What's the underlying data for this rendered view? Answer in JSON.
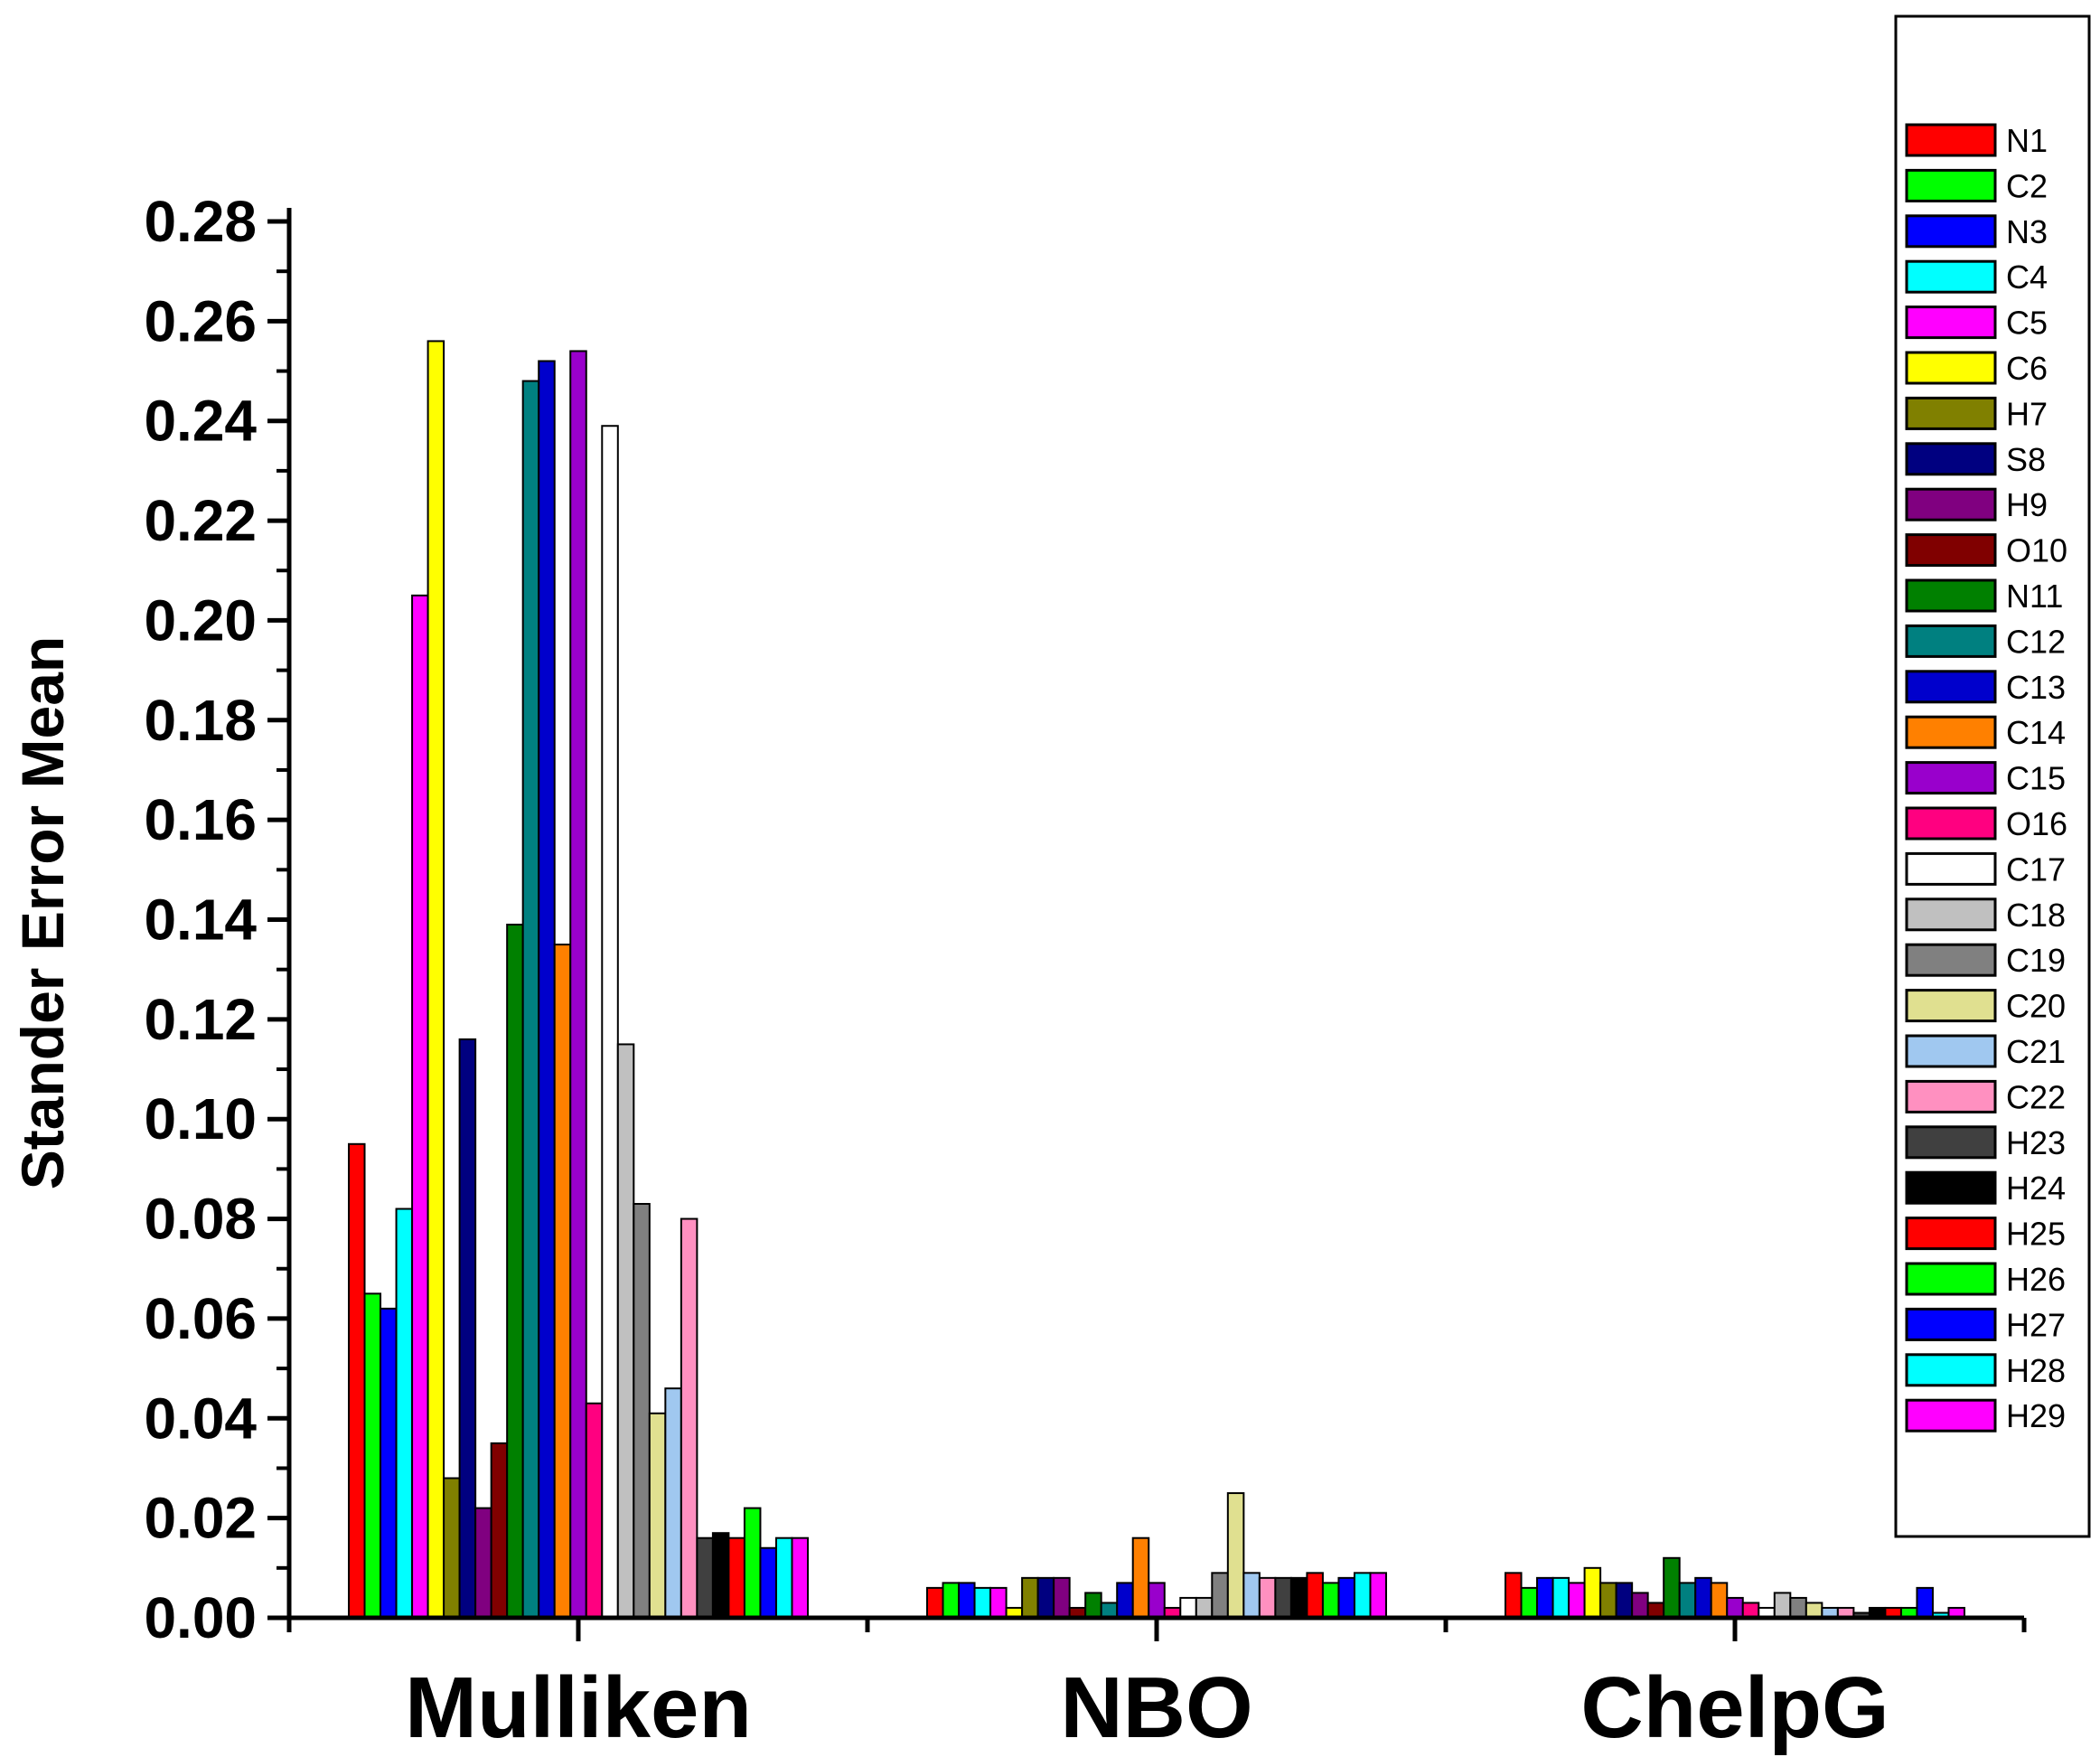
{
  "chart_data": {
    "type": "bar",
    "ylabel": "Stander Error Mean",
    "xlabel": "",
    "ylim": [
      0,
      0.28
    ],
    "y_ticks": [
      "0.00",
      "0.02",
      "0.04",
      "0.06",
      "0.08",
      "0.10",
      "0.12",
      "0.14",
      "0.16",
      "0.18",
      "0.20",
      "0.22",
      "0.24",
      "0.26",
      "0.28"
    ],
    "categories": [
      "Mulliken",
      "NBO",
      "ChelpG"
    ],
    "legend_position": "right",
    "grid": false,
    "series": [
      {
        "name": "N1",
        "color": "#ff0000",
        "values": [
          0.095,
          0.006,
          0.009
        ]
      },
      {
        "name": "C2",
        "color": "#00ff00",
        "values": [
          0.065,
          0.007,
          0.006
        ]
      },
      {
        "name": "N3",
        "color": "#0000ff",
        "values": [
          0.062,
          0.007,
          0.008
        ]
      },
      {
        "name": "C4",
        "color": "#00ffff",
        "values": [
          0.082,
          0.006,
          0.008
        ]
      },
      {
        "name": "C5",
        "color": "#ff00ff",
        "values": [
          0.205,
          0.006,
          0.007
        ]
      },
      {
        "name": "C6",
        "color": "#ffff00",
        "values": [
          0.256,
          0.002,
          0.01
        ]
      },
      {
        "name": "H7",
        "color": "#808000",
        "values": [
          0.028,
          0.008,
          0.007
        ]
      },
      {
        "name": "S8",
        "color": "#000080",
        "values": [
          0.116,
          0.008,
          0.007
        ]
      },
      {
        "name": "H9",
        "color": "#800080",
        "values": [
          0.022,
          0.008,
          0.005
        ]
      },
      {
        "name": "O10",
        "color": "#800000",
        "values": [
          0.035,
          0.002,
          0.003
        ]
      },
      {
        "name": "N11",
        "color": "#008000",
        "values": [
          0.139,
          0.005,
          0.012
        ]
      },
      {
        "name": "C12",
        "color": "#008080",
        "values": [
          0.248,
          0.003,
          0.007
        ]
      },
      {
        "name": "C13",
        "color": "#0000cc",
        "values": [
          0.252,
          0.007,
          0.008
        ]
      },
      {
        "name": "C14",
        "color": "#ff8000",
        "values": [
          0.135,
          0.016,
          0.007
        ]
      },
      {
        "name": "C15",
        "color": "#9900cc",
        "values": [
          0.254,
          0.007,
          0.004
        ]
      },
      {
        "name": "O16",
        "color": "#ff0080",
        "values": [
          0.043,
          0.002,
          0.003
        ]
      },
      {
        "name": "C17",
        "color": "#ffffff",
        "values": [
          0.239,
          0.004,
          0.002
        ]
      },
      {
        "name": "C18",
        "color": "#c0c0c0",
        "values": [
          0.115,
          0.004,
          0.005
        ]
      },
      {
        "name": "C19",
        "color": "#808080",
        "values": [
          0.083,
          0.009,
          0.004
        ]
      },
      {
        "name": "C20",
        "color": "#e0e090",
        "values": [
          0.041,
          0.025,
          0.003
        ]
      },
      {
        "name": "C21",
        "color": "#a0c8f0",
        "values": [
          0.046,
          0.009,
          0.002
        ]
      },
      {
        "name": "C22",
        "color": "#ff90c0",
        "values": [
          0.08,
          0.008,
          0.002
        ]
      },
      {
        "name": "H23",
        "color": "#404040",
        "values": [
          0.016,
          0.008,
          0.001
        ]
      },
      {
        "name": "H24",
        "color": "#000000",
        "values": [
          0.017,
          0.008,
          0.002
        ]
      },
      {
        "name": "H25",
        "color": "#ff0000",
        "values": [
          0.016,
          0.009,
          0.002
        ]
      },
      {
        "name": "H26",
        "color": "#00ff00",
        "values": [
          0.022,
          0.007,
          0.002
        ]
      },
      {
        "name": "H27",
        "color": "#0000ff",
        "values": [
          0.014,
          0.008,
          0.006
        ]
      },
      {
        "name": "H28",
        "color": "#00ffff",
        "values": [
          0.016,
          0.009,
          0.001
        ]
      },
      {
        "name": "H29",
        "color": "#ff00ff",
        "values": [
          0.016,
          0.009,
          0.002
        ]
      }
    ]
  }
}
